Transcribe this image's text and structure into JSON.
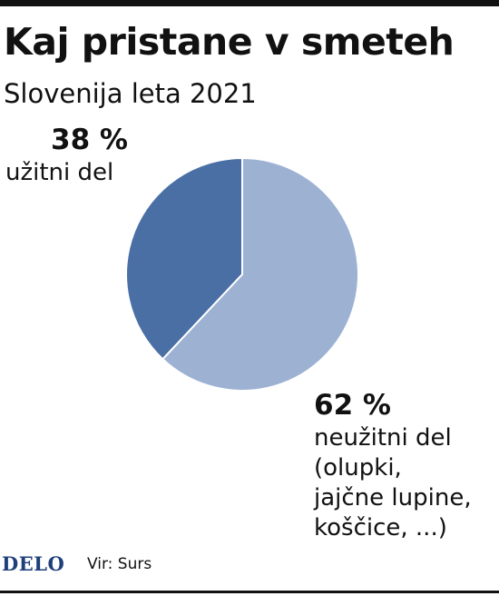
{
  "title": "Kaj pristane v smeteh",
  "subtitle": "Slovenija leta 2021",
  "colors": {
    "dark_slice": "#4a6fa5",
    "light_slice": "#9db1d3",
    "logo": "#1f3f7a"
  },
  "chart_data": {
    "type": "pie",
    "title": "Kaj pristane v smeteh",
    "subtitle": "Slovenija leta 2021",
    "slices": [
      {
        "value": 38,
        "label": "38 %",
        "name": "užitni del",
        "color": "#4a6fa5"
      },
      {
        "value": 62,
        "label": "62 %",
        "name": "neužitni del (olupki, jajčne lupine, koščice, ...)",
        "color": "#9db1d3"
      }
    ]
  },
  "labels": {
    "a": {
      "pct": "38 %",
      "lines": [
        "užitni del"
      ]
    },
    "b": {
      "pct": "62 %",
      "lines": [
        "neužitni del",
        "(olupki,",
        "jajčne lupine,",
        "koščice, ...)"
      ]
    }
  },
  "footer": {
    "logo": "DELO",
    "source": "Vir: Surs"
  }
}
